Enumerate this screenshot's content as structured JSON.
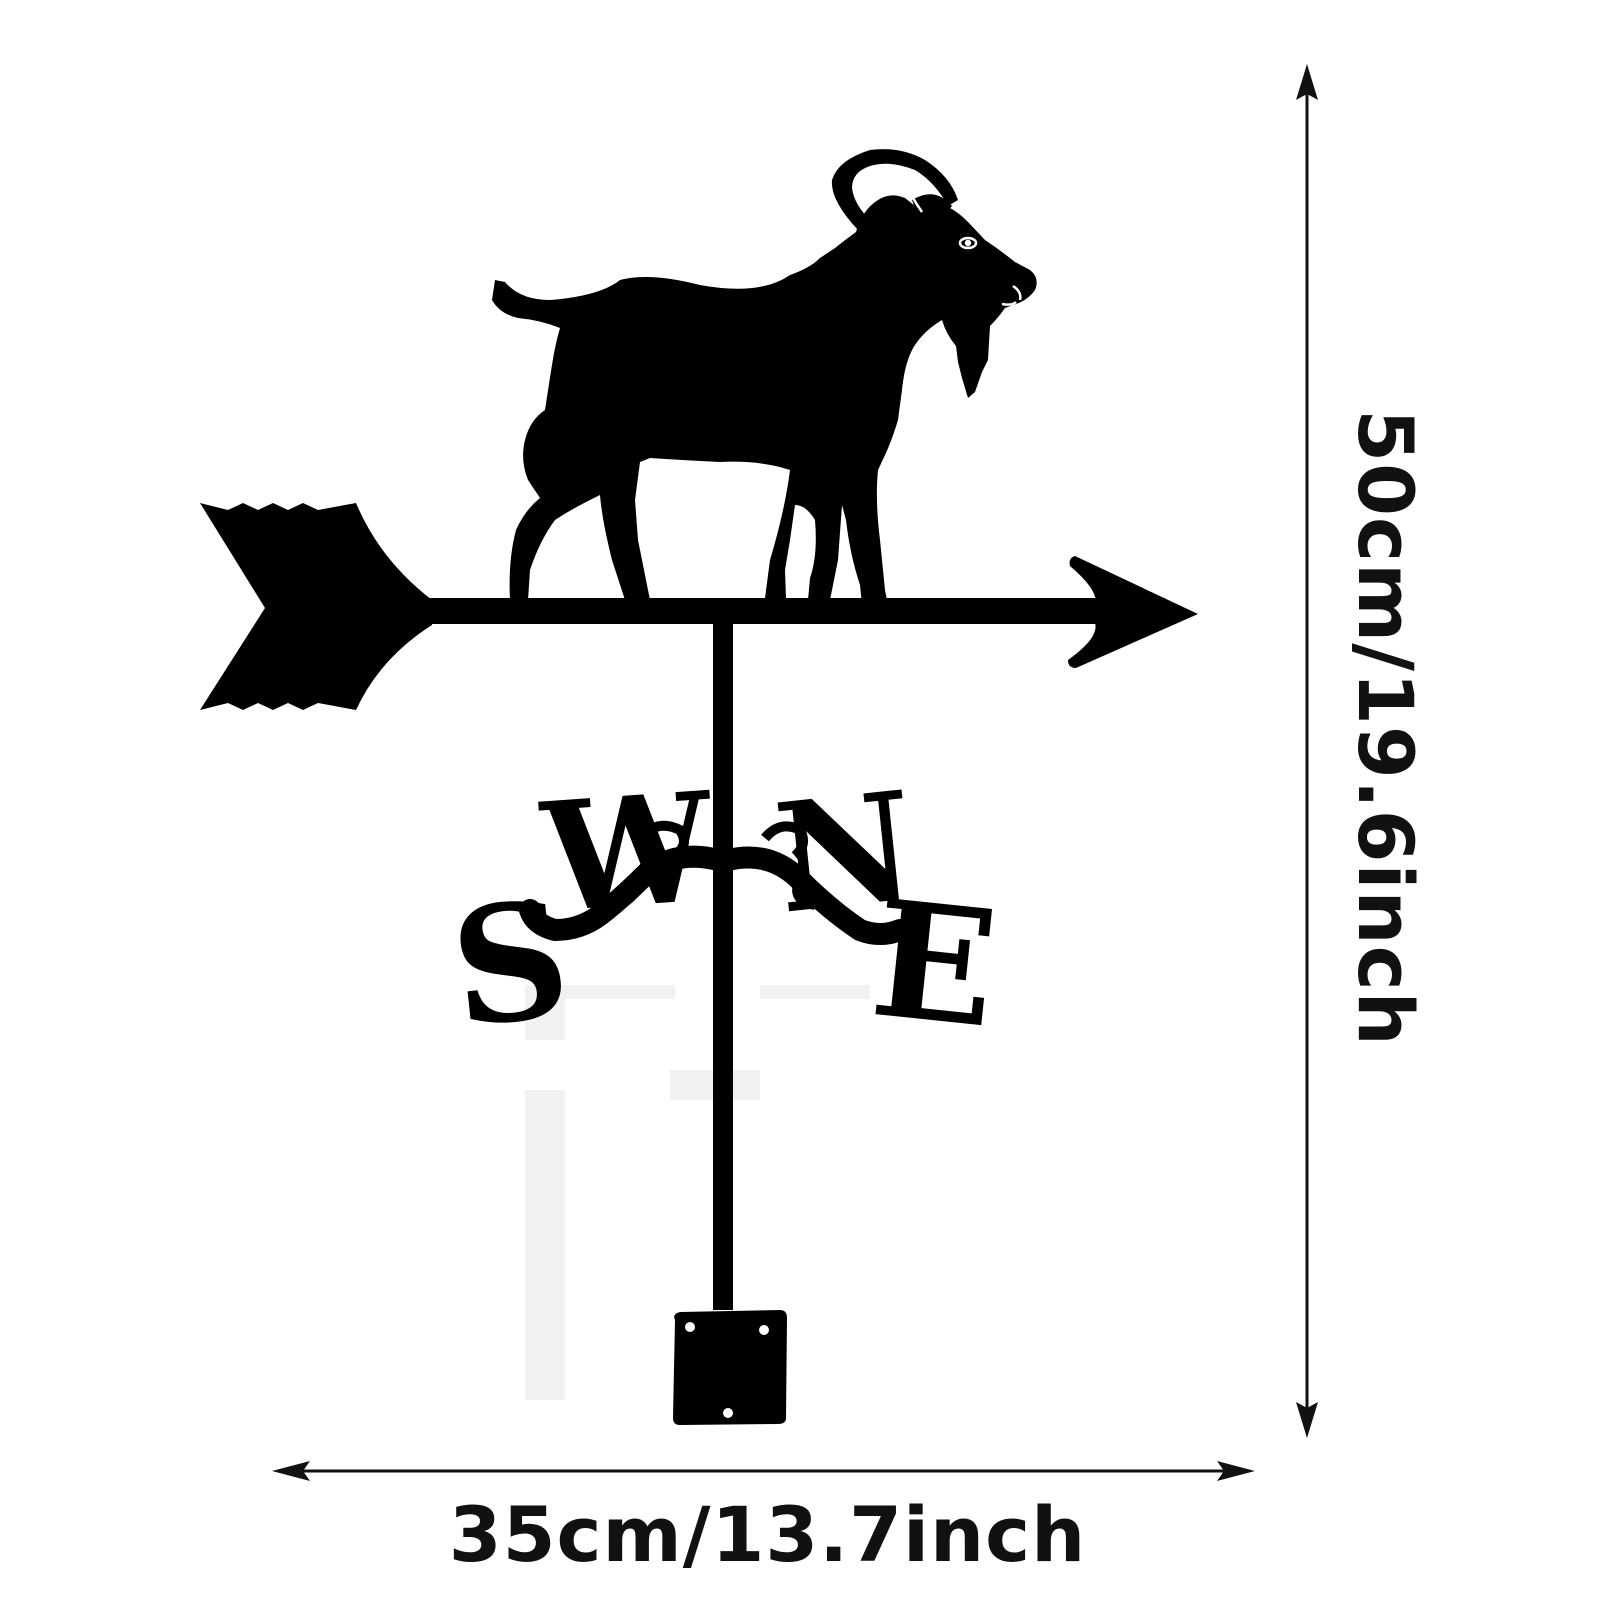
{
  "dimensions": {
    "width_label": "35cm/13.7inch",
    "height_label": "50cm/19.6inch"
  },
  "vane": {
    "directions": {
      "south": "S",
      "west": "W",
      "north": "N",
      "east": "E"
    },
    "color": "#000000"
  },
  "icons": {
    "figure": "goat-icon",
    "pointer": "arrow-icon",
    "compass": "compass-letters-icon",
    "base": "mounting-plate-icon"
  }
}
